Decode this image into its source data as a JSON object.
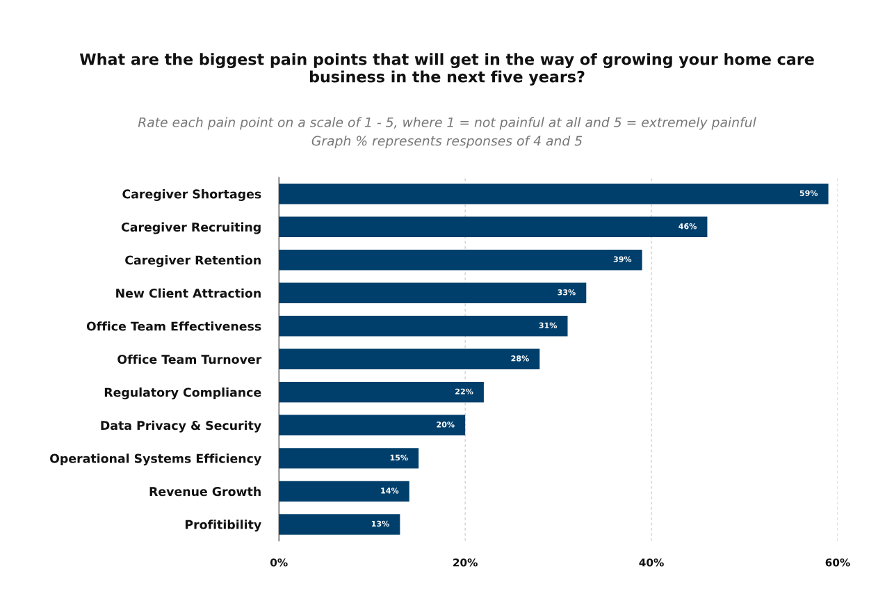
{
  "chart_data": {
    "type": "bar",
    "orientation": "horizontal",
    "title": "What are the biggest pain points that will get in the way of growing your home care\nbusiness in the next five years?",
    "subtitle": "Rate each pain point on a scale of 1 - 5, where 1 = not painful at all and 5 = extremely painful\nGraph % represents responses of 4 and 5",
    "categories": [
      "Caregiver Shortages",
      "Caregiver Recruiting",
      "Caregiver Retention",
      "New Client Attraction",
      "Office Team Effectiveness",
      "Office Team Turnover",
      "Regulatory Compliance",
      "Data Privacy & Security",
      "Operational Systems Efficiency",
      "Revenue Growth",
      "Profitibility"
    ],
    "values": [
      59,
      46,
      39,
      33,
      31,
      28,
      22,
      20,
      15,
      14,
      13
    ],
    "value_labels": [
      "59%",
      "46%",
      "39%",
      "33%",
      "31%",
      "28%",
      "22%",
      "20%",
      "15%",
      "14%",
      "13%"
    ],
    "color": "#003f6b",
    "xlim": [
      0,
      60
    ],
    "xticks": [
      {
        "value": 0,
        "label": "0%"
      },
      {
        "value": 20,
        "label": "20%"
      },
      {
        "value": 40,
        "label": "40%"
      },
      {
        "value": 60,
        "label": "60%"
      }
    ],
    "grid": "x"
  }
}
